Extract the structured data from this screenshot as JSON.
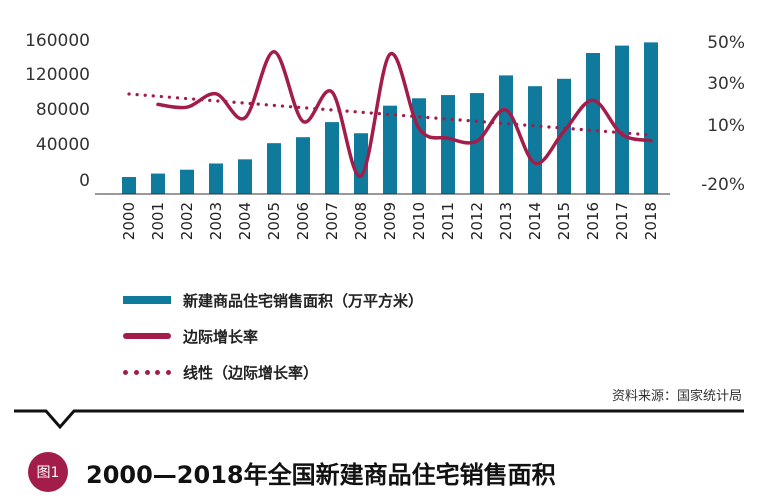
{
  "chart_data": {
    "type": "bar+line",
    "categories": [
      "2000",
      "2001",
      "2002",
      "2003",
      "2004",
      "2005",
      "2006",
      "2007",
      "2008",
      "2009",
      "2010",
      "2011",
      "2012",
      "2013",
      "2014",
      "2015",
      "2016",
      "2017",
      "2018"
    ],
    "series": [
      {
        "name": "新建商品住宅销售面积（万平方米）",
        "type": "bar",
        "axis": "left",
        "color": "#0f7a9b",
        "values": [
          16570,
          19939,
          23702,
          29779,
          33820,
          49588,
          55423,
          70136,
          59280,
          86185,
          93377,
          96528,
          98468,
          115723,
          105188,
          112412,
          137540,
          144789,
          147929
        ]
      },
      {
        "name": "边际增长率",
        "type": "line",
        "axis": "right",
        "color": "#a31d4b",
        "values": [
          null,
          20.3,
          18.9,
          25.6,
          13.6,
          46.6,
          11.8,
          26.5,
          -15.5,
          45.4,
          8.3,
          3.4,
          2.0,
          17.5,
          -9.1,
          6.9,
          22.4,
          5.3,
          2.2
        ]
      },
      {
        "name": "线性（边际增长率）",
        "type": "trendline",
        "axis": "right",
        "color": "#a31d4b",
        "start": 25.5,
        "end": 5.0
      }
    ],
    "left_axis": {
      "ylim": [
        0,
        160000
      ],
      "ticks": [
        "160000",
        "120000",
        "80000",
        "40000",
        "0"
      ]
    },
    "right_axis": {
      "ylim": [
        -20,
        50
      ],
      "ticks": [
        "50%",
        "30%",
        "10%",
        "-20%"
      ]
    },
    "source": "资料来源：国家统计局",
    "title": "2000—2018年全国新建商品住宅销售面积"
  },
  "legend": {
    "bar": "新建商品住宅销售面积（万平方米）",
    "line": "边际增长率",
    "trend": "线性（边际增长率）"
  },
  "source": "资料来源：国家统计局",
  "figure": {
    "badge": "图1",
    "title": "2000—2018年全国新建商品住宅销售面积"
  }
}
